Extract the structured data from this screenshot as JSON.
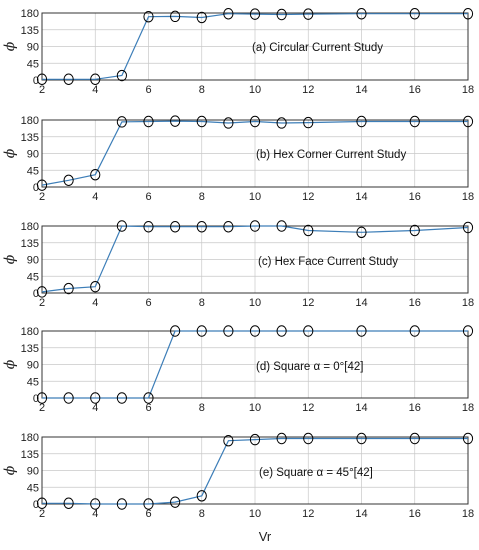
{
  "chart_data": [
    {
      "type": "line",
      "annotation": "(a) Circular  Current Study",
      "ylabel": "ϕ",
      "xlabel": "",
      "xlim": [
        2,
        18
      ],
      "ylim": [
        0,
        180
      ],
      "xticks": [
        2,
        4,
        6,
        8,
        10,
        12,
        14,
        16,
        18
      ],
      "yticks": [
        180,
        135,
        90,
        45,
        0
      ],
      "grid": true,
      "x": [
        2,
        3,
        4,
        5,
        6,
        7,
        8,
        9,
        10,
        11,
        12,
        14,
        16,
        18
      ],
      "y": [
        2,
        2,
        2,
        12,
        170,
        171,
        168,
        178,
        177,
        176,
        177,
        178,
        178,
        178
      ]
    },
    {
      "type": "line",
      "annotation": "(b)  Hex Corner  Current Study",
      "ylabel": "ϕ",
      "xlabel": "",
      "xlim": [
        2,
        18
      ],
      "ylim": [
        0,
        180
      ],
      "xticks": [
        2,
        4,
        6,
        8,
        10,
        12,
        14,
        16,
        18
      ],
      "yticks": [
        180,
        135,
        90,
        45,
        0
      ],
      "grid": true,
      "x": [
        2,
        3,
        4,
        5,
        6,
        7,
        8,
        9,
        10,
        11,
        12,
        14,
        16,
        18
      ],
      "y": [
        5,
        18,
        33,
        175,
        176,
        177,
        176,
        172,
        176,
        172,
        173,
        176,
        176,
        176
      ]
    },
    {
      "type": "line",
      "annotation": "(c) Hex Face  Current Study",
      "ylabel": "ϕ",
      "xlabel": "",
      "xlim": [
        2,
        18
      ],
      "ylim": [
        0,
        180
      ],
      "xticks": [
        2,
        4,
        6,
        8,
        10,
        12,
        14,
        16,
        18
      ],
      "yticks": [
        180,
        135,
        90,
        45,
        0
      ],
      "grid": true,
      "x": [
        2,
        3,
        4,
        5,
        6,
        7,
        8,
        9,
        10,
        11,
        12,
        14,
        16,
        18
      ],
      "y": [
        3,
        12,
        17,
        180,
        178,
        178,
        178,
        178,
        180,
        180,
        168,
        163,
        168,
        176
      ]
    },
    {
      "type": "line",
      "annotation": "(d) Square α = 0°[42]",
      "ylabel": "ϕ",
      "xlabel": "",
      "xlim": [
        2,
        18
      ],
      "ylim": [
        0,
        180
      ],
      "xticks": [
        2,
        4,
        6,
        8,
        10,
        12,
        14,
        16,
        18
      ],
      "yticks": [
        180,
        135,
        90,
        45,
        0
      ],
      "grid": true,
      "x": [
        2,
        3,
        4,
        5,
        6,
        7,
        8,
        9,
        10,
        11,
        12,
        14,
        16,
        18
      ],
      "y": [
        0,
        0,
        0,
        0,
        0,
        180,
        180,
        180,
        180,
        180,
        180,
        180,
        180,
        180
      ]
    },
    {
      "type": "line",
      "annotation": "(e) Square α = 45°[42]",
      "ylabel": "ϕ",
      "xlabel": "Vr",
      "xlim": [
        2,
        18
      ],
      "ylim": [
        0,
        180
      ],
      "xticks": [
        2,
        4,
        6,
        8,
        10,
        12,
        14,
        16,
        18
      ],
      "yticks": [
        180,
        135,
        90,
        45,
        0
      ],
      "grid": true,
      "x": [
        2,
        3,
        4,
        5,
        6,
        7,
        8,
        9,
        10,
        11,
        12,
        14,
        16,
        18
      ],
      "y": [
        2,
        2,
        0,
        0,
        0,
        5,
        22,
        170,
        173,
        176,
        176,
        176,
        176,
        176
      ]
    }
  ]
}
